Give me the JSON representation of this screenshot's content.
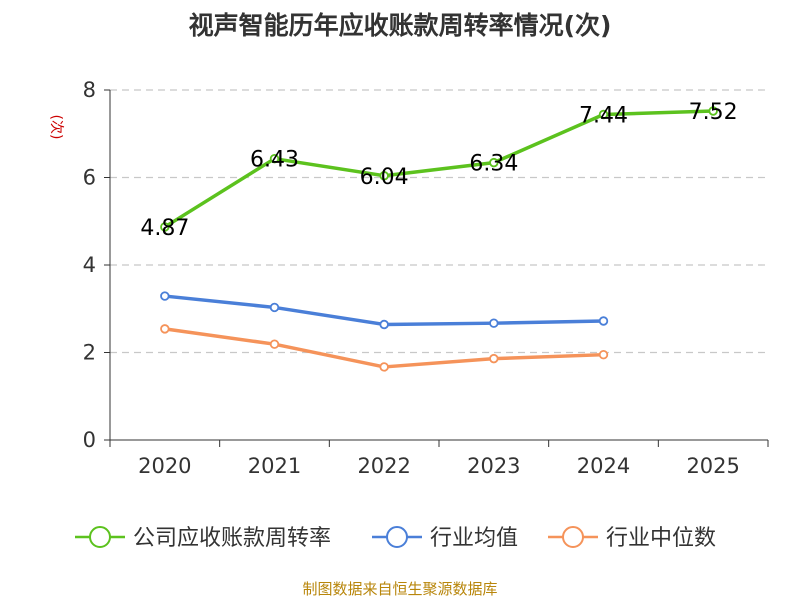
{
  "chart_data": {
    "type": "line",
    "title": "视声智能历年应收账款周转率情况(次)",
    "ylabel": "(次)",
    "categories": [
      "2020",
      "2021",
      "2022",
      "2023",
      "2024",
      "2025"
    ],
    "ylim": [
      0,
      8
    ],
    "yticks": [
      0,
      2,
      4,
      6,
      8
    ],
    "grid": true,
    "legend_position": "bottom",
    "series": [
      {
        "name": "公司应收账款周转率",
        "color": "#5cc21e",
        "values": [
          4.87,
          6.43,
          6.04,
          6.34,
          7.44,
          7.52
        ],
        "labels": [
          "4.87",
          "6.43",
          "6.04",
          "6.34",
          "7.44",
          "7.52"
        ]
      },
      {
        "name": "行业均值",
        "color": "#4a7fd8",
        "values": [
          3.29,
          3.03,
          2.64,
          2.67,
          2.72,
          null
        ]
      },
      {
        "name": "行业中位数",
        "color": "#f5935a",
        "values": [
          2.54,
          2.19,
          1.67,
          1.86,
          1.95,
          null
        ]
      }
    ],
    "source": "制图数据来自恒生聚源数据库"
  }
}
